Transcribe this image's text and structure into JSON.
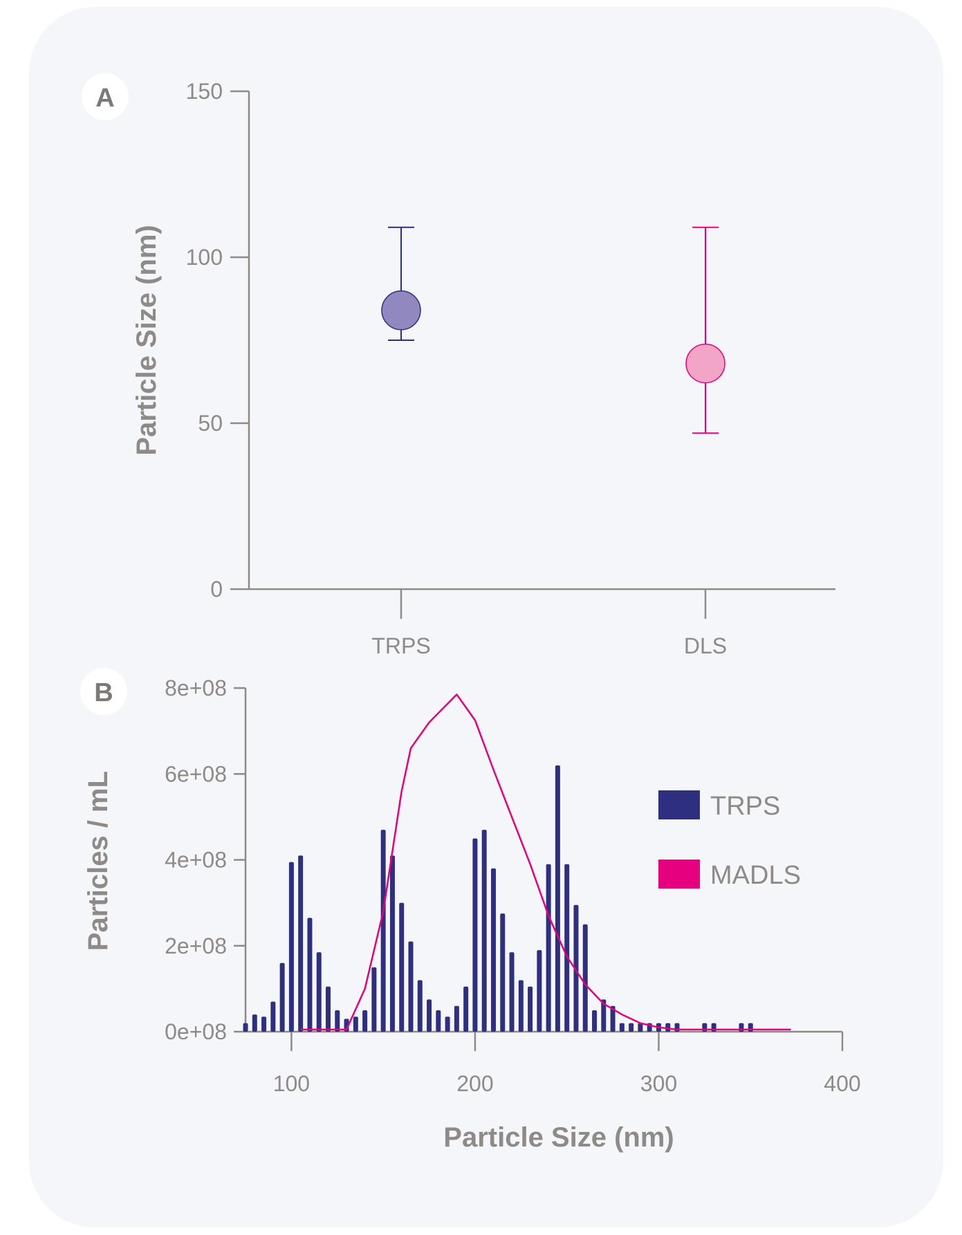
{
  "colors": {
    "trps": "#2e2f7f",
    "trps_fill": "#9088bf",
    "dls": "#e6007e",
    "dls_fill": "#f3a5c8",
    "axis": "#8e8a87",
    "background": "#f5f6fa"
  },
  "chart_data": [
    {
      "panel": "A",
      "type": "scatter",
      "ylabel": "Particle Size (nm)",
      "xlabel": "",
      "ylim": [
        0,
        150
      ],
      "yticks": [
        "0",
        "50",
        "100",
        "150"
      ],
      "categories": [
        "TRPS",
        "DLS"
      ],
      "points": [
        {
          "category": "TRPS",
          "value": 84,
          "lower": 75,
          "upper": 109,
          "color": "trps"
        },
        {
          "category": "DLS",
          "value": 68,
          "lower": 47,
          "upper": 109,
          "color": "dls"
        }
      ]
    },
    {
      "panel": "B",
      "type": "bar",
      "xlabel": "Particle Size (nm)",
      "ylabel": "Particles / mL",
      "xlim": [
        75,
        400
      ],
      "ylim": [
        0,
        800000000
      ],
      "xticks": [
        "100",
        "200",
        "300",
        "400"
      ],
      "yticks": [
        "0e+08",
        "2e+08",
        "4e+08",
        "6e+08",
        "8e+08"
      ],
      "legend_position": "right",
      "series": [
        {
          "name": "TRPS",
          "type": "bar",
          "color": "trps",
          "x": [
            75,
            80,
            85,
            90,
            95,
            100,
            105,
            110,
            115,
            120,
            125,
            130,
            135,
            140,
            145,
            150,
            155,
            160,
            165,
            170,
            175,
            180,
            185,
            190,
            195,
            200,
            205,
            210,
            215,
            220,
            225,
            230,
            235,
            240,
            245,
            250,
            255,
            260,
            265,
            270,
            275,
            280,
            285,
            290,
            295,
            300,
            305,
            310,
            325,
            330,
            345,
            350
          ],
          "values": [
            20000000,
            40000000,
            35000000,
            70000000,
            160000000,
            395000000,
            410000000,
            265000000,
            185000000,
            105000000,
            50000000,
            30000000,
            35000000,
            50000000,
            150000000,
            470000000,
            410000000,
            300000000,
            210000000,
            120000000,
            75000000,
            50000000,
            35000000,
            60000000,
            105000000,
            450000000,
            470000000,
            380000000,
            275000000,
            185000000,
            120000000,
            105000000,
            190000000,
            390000000,
            620000000,
            390000000,
            295000000,
            250000000,
            50000000,
            75000000,
            60000000,
            20000000,
            20000000,
            20000000,
            20000000,
            20000000,
            20000000,
            20000000,
            20000000,
            20000000,
            20000000,
            20000000
          ]
        },
        {
          "name": "MADLS",
          "type": "line",
          "color": "dls",
          "x": [
            105,
            130,
            140,
            150,
            155,
            160,
            165,
            175,
            190,
            200,
            210,
            220,
            230,
            240,
            250,
            260,
            270,
            280,
            290,
            300,
            310,
            330,
            350,
            372
          ],
          "values": [
            5000000,
            5000000,
            100000000,
            280000000,
            420000000,
            560000000,
            660000000,
            720000000,
            785000000,
            725000000,
            610000000,
            500000000,
            390000000,
            270000000,
            175000000,
            110000000,
            65000000,
            40000000,
            20000000,
            10000000,
            5000000,
            5000000,
            5000000,
            5000000
          ]
        }
      ]
    }
  ]
}
